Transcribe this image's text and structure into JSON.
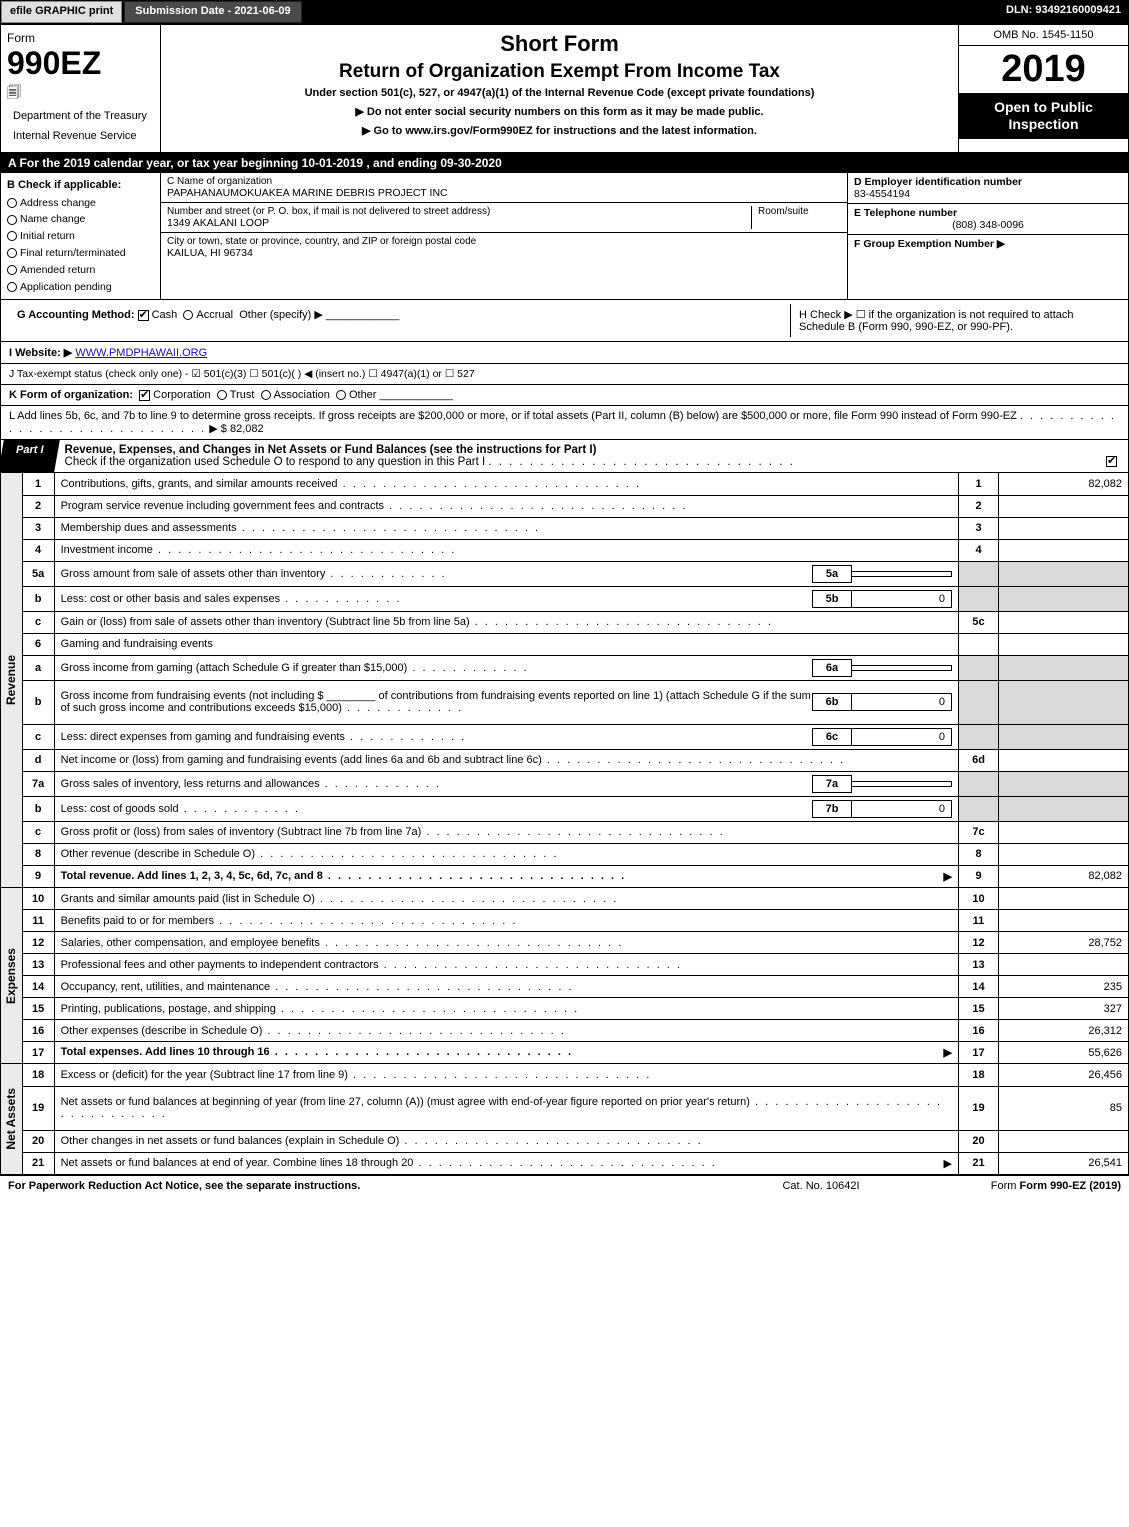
{
  "topbar": {
    "efile": "efile GRAPHIC print",
    "submission": "Submission Date - 2021-06-09",
    "dln": "DLN: 93492160009421"
  },
  "header": {
    "form_label": "Form",
    "form_number": "990EZ",
    "dept": "Department of the Treasury",
    "irs": "Internal Revenue Service",
    "title1": "Short Form",
    "title2": "Return of Organization Exempt From Income Tax",
    "subtitle": "Under section 501(c), 527, or 4947(a)(1) of the Internal Revenue Code (except private foundations)",
    "note1": "▶ Do not enter social security numbers on this form as it may be made public.",
    "note2": "▶ Go to www.irs.gov/Form990EZ for instructions and the latest information.",
    "omb": "OMB No. 1545-1150",
    "year": "2019",
    "inspect1": "Open to Public",
    "inspect2": "Inspection"
  },
  "lineA": "A For the 2019 calendar year, or tax year beginning 10-01-2019 , and ending 09-30-2020",
  "boxB": {
    "header": "B Check if applicable:",
    "items": [
      "Address change",
      "Name change",
      "Initial return",
      "Final return/terminated",
      "Amended return",
      "Application pending"
    ]
  },
  "boxC": {
    "name_lbl": "C Name of organization",
    "name": "PAPAHANAUMOKUAKEA MARINE DEBRIS PROJECT INC",
    "addr_lbl": "Number and street (or P. O. box, if mail is not delivered to street address)",
    "addr": "1349 AKALANI LOOP",
    "room_lbl": "Room/suite",
    "city_lbl": "City or town, state or province, country, and ZIP or foreign postal code",
    "city": "KAILUA, HI  96734"
  },
  "boxD": {
    "lbl": "D Employer identification number",
    "val": "83-4554194"
  },
  "boxE": {
    "lbl": "E Telephone number",
    "val": "(808) 348-0096"
  },
  "boxF": {
    "lbl": "F Group Exemption Number  ▶",
    "val": ""
  },
  "lineG": {
    "lbl": "G Accounting Method:",
    "opts": [
      "Cash",
      "Accrual",
      "Other (specify) ▶"
    ],
    "checked": 0
  },
  "lineH": "H  Check ▶  ☐  if the organization is not required to attach Schedule B (Form 990, 990-EZ, or 990-PF).",
  "lineI": {
    "lbl": "I Website: ▶",
    "val": "WWW.PMDPHAWAII.ORG"
  },
  "lineJ": "J Tax-exempt status (check only one) - ☑ 501(c)(3) ☐ 501(c)( ) ◀ (insert no.) ☐ 4947(a)(1) or ☐ 527",
  "lineK": {
    "lbl": "K Form of organization:",
    "opts": [
      "Corporation",
      "Trust",
      "Association",
      "Other"
    ],
    "checked": 0
  },
  "lineL": {
    "text": "L Add lines 5b, 6c, and 7b to line 9 to determine gross receipts. If gross receipts are $200,000 or more, or if total assets (Part II, column (B) below) are $500,000 or more, file Form 990 instead of Form 990-EZ",
    "val": "▶ $ 82,082"
  },
  "partI": {
    "tab": "Part I",
    "title": "Revenue, Expenses, and Changes in Net Assets or Fund Balances (see the instructions for Part I)",
    "check": "Check if the organization used Schedule O to respond to any question in this Part I",
    "checked": true
  },
  "revenue_label": "Revenue",
  "expenses_label": "Expenses",
  "netassets_label": "Net Assets",
  "rows": [
    {
      "n": "1",
      "d": "Contributions, gifts, grants, and similar amounts received",
      "ln": "1",
      "v": "82,082"
    },
    {
      "n": "2",
      "d": "Program service revenue including government fees and contracts",
      "ln": "2",
      "v": ""
    },
    {
      "n": "3",
      "d": "Membership dues and assessments",
      "ln": "3",
      "v": ""
    },
    {
      "n": "4",
      "d": "Investment income",
      "ln": "4",
      "v": ""
    },
    {
      "n": "5a",
      "d": "Gross amount from sale of assets other than inventory",
      "sb": "5a",
      "sv": "",
      "ln": "",
      "v": "",
      "gray": true
    },
    {
      "n": "b",
      "d": "Less: cost or other basis and sales expenses",
      "sb": "5b",
      "sv": "0",
      "ln": "",
      "v": "",
      "gray": true
    },
    {
      "n": "c",
      "d": "Gain or (loss) from sale of assets other than inventory (Subtract line 5b from line 5a)",
      "ln": "5c",
      "v": ""
    },
    {
      "n": "6",
      "d": "Gaming and fundraising events",
      "ln": "",
      "v": "",
      "nobox": true
    },
    {
      "n": "a",
      "d": "Gross income from gaming (attach Schedule G if greater than $15,000)",
      "sb": "6a",
      "sv": "",
      "ln": "",
      "v": "",
      "gray": true
    },
    {
      "n": "b",
      "d": "Gross income from fundraising events (not including $ ________ of contributions from fundraising events reported on line 1) (attach Schedule G if the sum of such gross income and contributions exceeds $15,000)",
      "sb": "6b",
      "sv": "0",
      "ln": "",
      "v": "",
      "gray": true,
      "tall": true
    },
    {
      "n": "c",
      "d": "Less: direct expenses from gaming and fundraising events",
      "sb": "6c",
      "sv": "0",
      "ln": "",
      "v": "",
      "gray": true
    },
    {
      "n": "d",
      "d": "Net income or (loss) from gaming and fundraising events (add lines 6a and 6b and subtract line 6c)",
      "ln": "6d",
      "v": ""
    },
    {
      "n": "7a",
      "d": "Gross sales of inventory, less returns and allowances",
      "sb": "7a",
      "sv": "",
      "ln": "",
      "v": "",
      "gray": true
    },
    {
      "n": "b",
      "d": "Less: cost of goods sold",
      "sb": "7b",
      "sv": "0",
      "ln": "",
      "v": "",
      "gray": true
    },
    {
      "n": "c",
      "d": "Gross profit or (loss) from sales of inventory (Subtract line 7b from line 7a)",
      "ln": "7c",
      "v": ""
    },
    {
      "n": "8",
      "d": "Other revenue (describe in Schedule O)",
      "ln": "8",
      "v": ""
    },
    {
      "n": "9",
      "d": "Total revenue. Add lines 1, 2, 3, 4, 5c, 6d, 7c, and 8",
      "ln": "9",
      "v": "82,082",
      "bold": true,
      "arrow": true
    }
  ],
  "exp_rows": [
    {
      "n": "10",
      "d": "Grants and similar amounts paid (list in Schedule O)",
      "ln": "10",
      "v": ""
    },
    {
      "n": "11",
      "d": "Benefits paid to or for members",
      "ln": "11",
      "v": ""
    },
    {
      "n": "12",
      "d": "Salaries, other compensation, and employee benefits",
      "ln": "12",
      "v": "28,752"
    },
    {
      "n": "13",
      "d": "Professional fees and other payments to independent contractors",
      "ln": "13",
      "v": ""
    },
    {
      "n": "14",
      "d": "Occupancy, rent, utilities, and maintenance",
      "ln": "14",
      "v": "235"
    },
    {
      "n": "15",
      "d": "Printing, publications, postage, and shipping",
      "ln": "15",
      "v": "327"
    },
    {
      "n": "16",
      "d": "Other expenses (describe in Schedule O)",
      "ln": "16",
      "v": "26,312"
    },
    {
      "n": "17",
      "d": "Total expenses. Add lines 10 through 16",
      "ln": "17",
      "v": "55,626",
      "bold": true,
      "arrow": true
    }
  ],
  "net_rows": [
    {
      "n": "18",
      "d": "Excess or (deficit) for the year (Subtract line 17 from line 9)",
      "ln": "18",
      "v": "26,456"
    },
    {
      "n": "19",
      "d": "Net assets or fund balances at beginning of year (from line 27, column (A)) (must agree with end-of-year figure reported on prior year's return)",
      "ln": "19",
      "v": "85",
      "tall": true
    },
    {
      "n": "20",
      "d": "Other changes in net assets or fund balances (explain in Schedule O)",
      "ln": "20",
      "v": ""
    },
    {
      "n": "21",
      "d": "Net assets or fund balances at end of year. Combine lines 18 through 20",
      "ln": "21",
      "v": "26,541",
      "arrow": true
    }
  ],
  "footer": {
    "left": "For Paperwork Reduction Act Notice, see the separate instructions.",
    "center": "Cat. No. 10642I",
    "right": "Form 990-EZ (2019)"
  }
}
